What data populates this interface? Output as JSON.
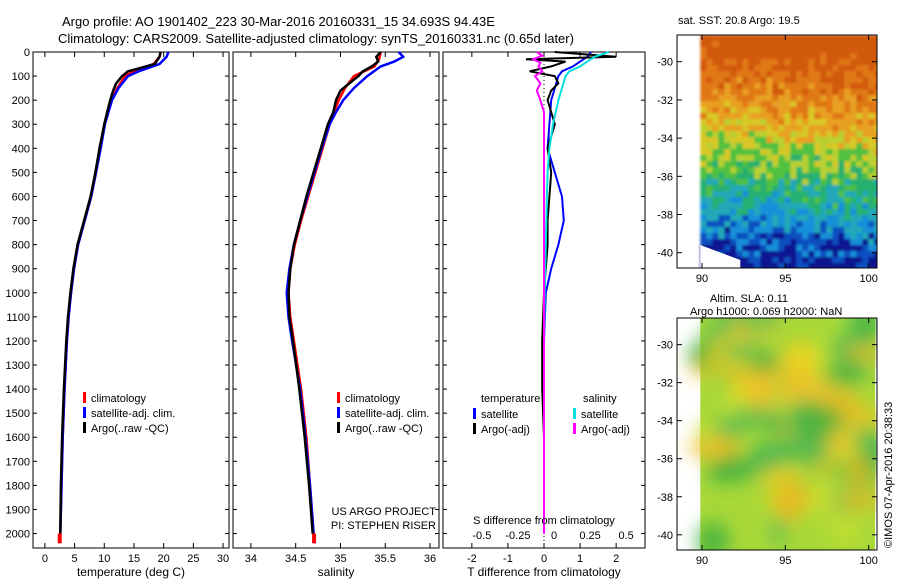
{
  "header": {
    "line1": "Argo profile: AO 1901402_223 30-Mar-2016 20160331_15 34.693S 94.43E",
    "line2": "Climatology: CARS2009. Satellite-adjusted climatology: synTS_20160331.nc (0.65d later)"
  },
  "colors": {
    "climatology": "#ff0000",
    "satellite": "#0000ff",
    "argo": "#000000",
    "satellite_salinity": "#00e0e0",
    "argo_salinity": "#ff00ff"
  },
  "chart_data": [
    {
      "type": "line",
      "id": "temperature",
      "xlabel": "temperature (deg C)",
      "xlim": [
        -2,
        31
      ],
      "xticks": [
        0,
        5,
        10,
        15,
        20,
        25,
        30
      ],
      "ylim": [
        2060,
        0
      ],
      "yticks": [
        0,
        100,
        200,
        300,
        400,
        500,
        600,
        700,
        800,
        900,
        1000,
        1100,
        1200,
        1300,
        1400,
        1500,
        1600,
        1700,
        1800,
        1900,
        2000
      ],
      "legend": [
        "climatology",
        "satellite-adj. clim.",
        "Argo(..raw -QC)"
      ],
      "series": [
        {
          "name": "climatology",
          "color": "#ff0000",
          "depth": [
            0,
            20,
            50,
            80,
            100,
            150,
            200,
            300,
            400,
            500,
            600,
            700,
            800,
            900,
            1000,
            1100,
            1200,
            1400,
            1600,
            1800,
            2000,
            2040
          ],
          "values": [
            19.5,
            19.3,
            18.3,
            15.0,
            13.5,
            12.2,
            11.2,
            10.0,
            9.3,
            8.6,
            7.8,
            6.7,
            5.6,
            4.9,
            4.4,
            4.0,
            3.7,
            3.3,
            3.0,
            2.8,
            2.6,
            2.5
          ]
        },
        {
          "name": "satellite-adj. clim.",
          "color": "#0000ff",
          "depth": [
            0,
            20,
            50,
            80,
            100,
            150,
            200,
            300,
            400,
            500,
            600,
            700,
            800,
            900,
            1000,
            1100,
            1200,
            1400,
            1600,
            1800,
            2000,
            2040
          ],
          "values": [
            20.8,
            20.5,
            19.3,
            15.8,
            14.0,
            12.4,
            11.3,
            10.1,
            9.4,
            8.6,
            7.8,
            6.7,
            5.6,
            4.9,
            4.4,
            4.0,
            3.7,
            3.3,
            3.0,
            2.8,
            2.6,
            2.5
          ]
        },
        {
          "name": "Argo(..raw -QC)",
          "color": "#000000",
          "depth": [
            0,
            20,
            50,
            70,
            80,
            100,
            130,
            160,
            200,
            250,
            300,
            400,
            500,
            600,
            700,
            800,
            900,
            1000,
            1100,
            1200,
            1400,
            1600,
            1800,
            2000
          ],
          "values": [
            19.5,
            19.3,
            18.5,
            15.5,
            14.0,
            13.0,
            12.0,
            11.5,
            11.0,
            10.5,
            10.0,
            9.2,
            8.5,
            7.7,
            6.6,
            5.5,
            4.8,
            4.3,
            3.9,
            3.6,
            3.2,
            2.9,
            2.7,
            2.6
          ]
        }
      ]
    },
    {
      "type": "line",
      "id": "salinity",
      "xlabel": "salinity",
      "xlim": [
        33.8,
        36.1
      ],
      "xticks": [
        34,
        34.5,
        35,
        35.5,
        36
      ],
      "ylim": [
        2060,
        0
      ],
      "legend": [
        "climatology",
        "satellite-adj. clim.",
        "Argo(..raw -QC)"
      ],
      "annotation": [
        "US ARGO PROJECT",
        "PI: STEPHEN RISER"
      ],
      "series": [
        {
          "name": "climatology",
          "color": "#ff0000",
          "depth": [
            0,
            30,
            60,
            100,
            150,
            200,
            300,
            400,
            500,
            600,
            700,
            800,
            900,
            1000,
            1100,
            1200,
            1400,
            1600,
            1800,
            2000,
            2040
          ],
          "values": [
            35.45,
            35.43,
            35.38,
            35.15,
            35.05,
            34.98,
            34.88,
            34.8,
            34.72,
            34.64,
            34.56,
            34.49,
            34.44,
            34.42,
            34.44,
            34.48,
            34.56,
            34.62,
            34.66,
            34.7,
            34.71
          ]
        },
        {
          "name": "satellite-adj. clim.",
          "color": "#0000ff",
          "depth": [
            0,
            20,
            40,
            60,
            100,
            150,
            200,
            250,
            300,
            400,
            500,
            600,
            700,
            800,
            900,
            1000,
            1100,
            1200,
            1400,
            1600,
            1800,
            2000,
            2040
          ],
          "values": [
            35.65,
            35.7,
            35.6,
            35.45,
            35.3,
            35.15,
            35.03,
            34.95,
            34.88,
            34.79,
            34.71,
            34.63,
            34.55,
            34.48,
            34.43,
            34.4,
            34.42,
            34.46,
            34.55,
            34.61,
            34.66,
            34.7,
            34.71
          ]
        },
        {
          "name": "Argo(..raw -QC)",
          "color": "#000000",
          "depth": [
            0,
            20,
            40,
            60,
            80,
            100,
            130,
            160,
            200,
            250,
            300,
            400,
            500,
            600,
            700,
            800,
            900,
            1000,
            1100,
            1200,
            1400,
            1600,
            1800,
            2000
          ],
          "values": [
            35.45,
            35.4,
            35.42,
            35.35,
            35.25,
            35.2,
            35.1,
            35.0,
            34.95,
            34.92,
            34.86,
            34.78,
            34.7,
            34.62,
            34.55,
            34.48,
            34.44,
            34.42,
            34.43,
            34.47,
            34.54,
            34.6,
            34.65,
            34.69
          ]
        }
      ]
    },
    {
      "type": "line",
      "id": "difference",
      "xlabel": "T difference from climatology",
      "xlabel_top": "S difference from climatology",
      "xlim": [
        -2.8,
        2.8
      ],
      "xticks": [
        -2,
        -1,
        0,
        1,
        2
      ],
      "xticks_top": [
        "-0.5",
        "-0.25",
        "0",
        "0.25",
        "0.5"
      ],
      "ylim": [
        2060,
        0
      ],
      "legend_headers": [
        "temperature",
        "salinity"
      ],
      "legend": [
        "satellite",
        "Argo(-adj)",
        "satellite",
        "Argo(-adj)"
      ],
      "series": [
        {
          "name": "satellite",
          "color": "#0000ff",
          "quantity": "temperature",
          "depth": [
            0,
            20,
            40,
            60,
            80,
            100,
            150,
            200,
            300,
            400,
            500,
            600,
            700,
            800,
            900,
            1000,
            1200,
            1600,
            2000
          ],
          "values": [
            1.3,
            1.2,
            1.0,
            0.8,
            0.5,
            0.4,
            0.3,
            0.2,
            0.15,
            0.1,
            0.3,
            0.5,
            0.55,
            0.4,
            0.2,
            0.05,
            0.0,
            0.0,
            0.0
          ]
        },
        {
          "name": "Argo(-adj)",
          "color": "#000000",
          "quantity": "temperature",
          "depth": [
            0,
            20,
            30,
            40,
            60,
            80,
            100,
            130,
            160,
            200,
            300,
            400,
            500,
            600,
            700,
            800,
            900,
            1000,
            1200,
            1400,
            1600,
            1800,
            2000
          ],
          "values": [
            0.3,
            2.0,
            -0.5,
            0.6,
            0.2,
            -0.4,
            0.3,
            0.4,
            0.2,
            0.1,
            0.3,
            0.1,
            0.2,
            0.15,
            0.1,
            0.1,
            0.05,
            0.0,
            -0.05,
            -0.05,
            0.0,
            0.0,
            0.0
          ]
        },
        {
          "name": "satellite",
          "color": "#00e0e0",
          "quantity": "salinity",
          "depth": [
            0,
            20,
            40,
            60,
            80,
            100,
            150,
            200,
            300,
            400,
            500,
            600,
            800,
            1000,
            1200,
            1400,
            1600,
            1800,
            2000
          ],
          "values": [
            1.8,
            1.4,
            1.2,
            1.0,
            0.7,
            0.6,
            0.5,
            0.4,
            0.25,
            0.15,
            0.1,
            0.08,
            0.05,
            0.02,
            0.0,
            0.0,
            0.0,
            0.0,
            0.0
          ]
        },
        {
          "name": "Argo(-adj)",
          "color": "#ff00ff",
          "quantity": "salinity",
          "depth": [
            0,
            15,
            30,
            45,
            60,
            80,
            100,
            130,
            160,
            200,
            250,
            300,
            400,
            600,
            1000,
            1400,
            2000
          ],
          "values": [
            -0.2,
            -0.05,
            -0.3,
            -0.1,
            -0.15,
            -0.05,
            -0.25,
            -0.1,
            -0.2,
            -0.1,
            0.0,
            0.0,
            0.0,
            0.0,
            0.0,
            0.0,
            0.0
          ]
        }
      ]
    },
    {
      "type": "heatmap",
      "id": "sst-map",
      "title": "sat. SST: 20.8  Argo: 19.5",
      "xticks": [
        90,
        95,
        100
      ],
      "yticks": [
        -30,
        -32,
        -34,
        -36,
        -38,
        -40
      ],
      "xlim": [
        88.5,
        100.5
      ],
      "ylim": [
        -40.8,
        -28.6
      ],
      "argo_location": {
        "lon": 94.43,
        "lat": -34.693
      }
    },
    {
      "type": "heatmap",
      "id": "sla-map",
      "title": "Altim. SLA: 0.11",
      "subtitle": "Argo h1000: 0.069 h2000: NaN",
      "xticks": [
        90,
        95,
        100
      ],
      "yticks": [
        -30,
        -32,
        -34,
        -36,
        -38,
        -40
      ],
      "xlim": [
        88.5,
        100.5
      ],
      "ylim": [
        -40.8,
        -28.6
      ],
      "argo_location": {
        "lon": 94.43,
        "lat": -34.693
      }
    }
  ],
  "footer": {
    "credit": "©IMOS 07-Apr-2016 20:38:33"
  }
}
